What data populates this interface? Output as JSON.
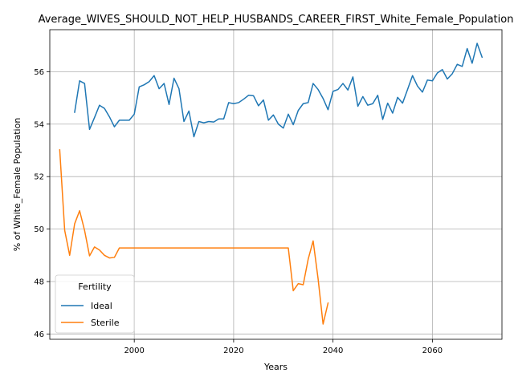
{
  "chart_data": {
    "type": "line",
    "title": "Average_WIVES_SHOULD_NOT_HELP_HUSBANDS_CAREER_FIRST_White_Female_Population",
    "xlabel": "Years",
    "ylabel": "% of White_Female Population",
    "xlim": [
      1983,
      2074
    ],
    "ylim": [
      45.8,
      57.6
    ],
    "xticks": [
      2000,
      2020,
      2040,
      2060
    ],
    "yticks": [
      46,
      48,
      50,
      52,
      54,
      56
    ],
    "grid": true,
    "legend": {
      "title": "Fertility",
      "placement": "lower-left"
    },
    "series": [
      {
        "name": "Ideal",
        "color": "#1f77b4",
        "x": [
          1988,
          1989,
          1990,
          1991,
          1992,
          1993,
          1994,
          1995,
          1996,
          1997,
          1998,
          1999,
          2000,
          2001,
          2002,
          2003,
          2004,
          2005,
          2006,
          2007,
          2008,
          2009,
          2010,
          2011,
          2012,
          2013,
          2014,
          2015,
          2016,
          2017,
          2018,
          2019,
          2020,
          2021,
          2022,
          2023,
          2024,
          2025,
          2026,
          2027,
          2028,
          2029,
          2030,
          2031,
          2032,
          2033,
          2034,
          2035,
          2036,
          2037,
          2038,
          2039,
          2040,
          2041,
          2042,
          2043,
          2044,
          2045,
          2046,
          2047,
          2048,
          2049,
          2050,
          2051,
          2052,
          2053,
          2054,
          2055,
          2056,
          2057,
          2058,
          2059,
          2060,
          2061,
          2062,
          2063,
          2064,
          2065,
          2066,
          2067,
          2068,
          2069,
          2070
        ],
        "values": [
          54.45,
          55.65,
          55.55,
          53.8,
          54.25,
          54.72,
          54.6,
          54.28,
          53.9,
          54.15,
          54.15,
          54.15,
          54.38,
          55.42,
          55.5,
          55.62,
          55.85,
          55.35,
          55.55,
          54.75,
          55.75,
          55.35,
          54.1,
          54.5,
          53.52,
          54.1,
          54.05,
          54.1,
          54.08,
          54.2,
          54.2,
          54.82,
          54.78,
          54.82,
          54.95,
          55.1,
          55.08,
          54.7,
          54.92,
          54.15,
          54.35,
          54.0,
          53.85,
          54.38,
          53.98,
          54.52,
          54.78,
          54.82,
          55.55,
          55.32,
          54.98,
          54.55,
          55.25,
          55.32,
          55.55,
          55.3,
          55.8,
          54.68,
          55.05,
          54.72,
          54.78,
          55.1,
          54.18,
          54.8,
          54.42,
          55.02,
          54.8,
          55.32,
          55.85,
          55.45,
          55.22,
          55.68,
          55.65,
          55.95,
          56.08,
          55.72,
          55.92,
          56.28,
          56.2,
          56.88,
          56.32,
          57.08,
          56.55
        ]
      },
      {
        "name": "Sterile",
        "color": "#ff7f0e",
        "x": [
          1985,
          1986,
          1987,
          1988,
          1989,
          1990,
          1991,
          1992,
          1993,
          1994,
          1995,
          1996,
          1997,
          1998,
          1999,
          2000,
          2001,
          2002,
          2003,
          2004,
          2005,
          2006,
          2007,
          2008,
          2009,
          2010,
          2011,
          2012,
          2013,
          2014,
          2015,
          2016,
          2017,
          2018,
          2019,
          2020,
          2021,
          2022,
          2023,
          2024,
          2025,
          2026,
          2027,
          2028,
          2029,
          2030,
          2031,
          2032,
          2033,
          2034,
          2035,
          2036,
          2037,
          2038,
          2039
        ],
        "values": [
          53.02,
          49.95,
          49.0,
          50.2,
          50.7,
          49.95,
          48.98,
          49.32,
          49.2,
          49.0,
          48.9,
          48.92,
          49.28,
          49.28,
          49.28,
          49.28,
          49.28,
          49.28,
          49.28,
          49.28,
          49.28,
          49.28,
          49.28,
          49.28,
          49.28,
          49.28,
          49.28,
          49.28,
          49.28,
          49.28,
          49.28,
          49.28,
          49.28,
          49.28,
          49.28,
          49.28,
          49.28,
          49.28,
          49.28,
          49.28,
          49.28,
          49.28,
          49.28,
          49.28,
          49.28,
          49.28,
          49.28,
          47.65,
          47.92,
          47.88,
          48.85,
          49.55,
          48.1,
          46.38,
          47.18
        ]
      }
    ]
  }
}
